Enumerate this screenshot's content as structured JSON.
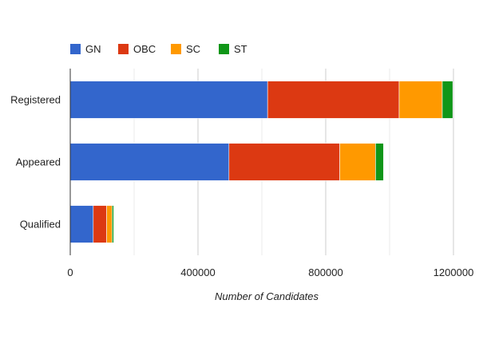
{
  "chart_data": {
    "type": "bar",
    "orientation": "horizontal",
    "stacked": true,
    "categories": [
      "Registered",
      "Appeared",
      "Qualified"
    ],
    "series": [
      {
        "name": "GN",
        "color": "#3366cc",
        "values": [
          618000,
          497000,
          72000
        ]
      },
      {
        "name": "OBC",
        "color": "#dc3912",
        "values": [
          412000,
          347000,
          42000
        ]
      },
      {
        "name": "SC",
        "color": "#ff9900",
        "values": [
          135000,
          112000,
          17000
        ]
      },
      {
        "name": "ST",
        "color": "#109618",
        "values": [
          33000,
          25000,
          5000
        ]
      }
    ],
    "xlabel": "Number of Candidates",
    "ylabel": "",
    "xlim": [
      0,
      1200000
    ],
    "xticks": [
      0,
      400000,
      800000,
      1200000
    ],
    "xtick_labels": [
      "0",
      "400000",
      "800000",
      "1200000"
    ],
    "grid": true,
    "legend_position": "top-left"
  }
}
